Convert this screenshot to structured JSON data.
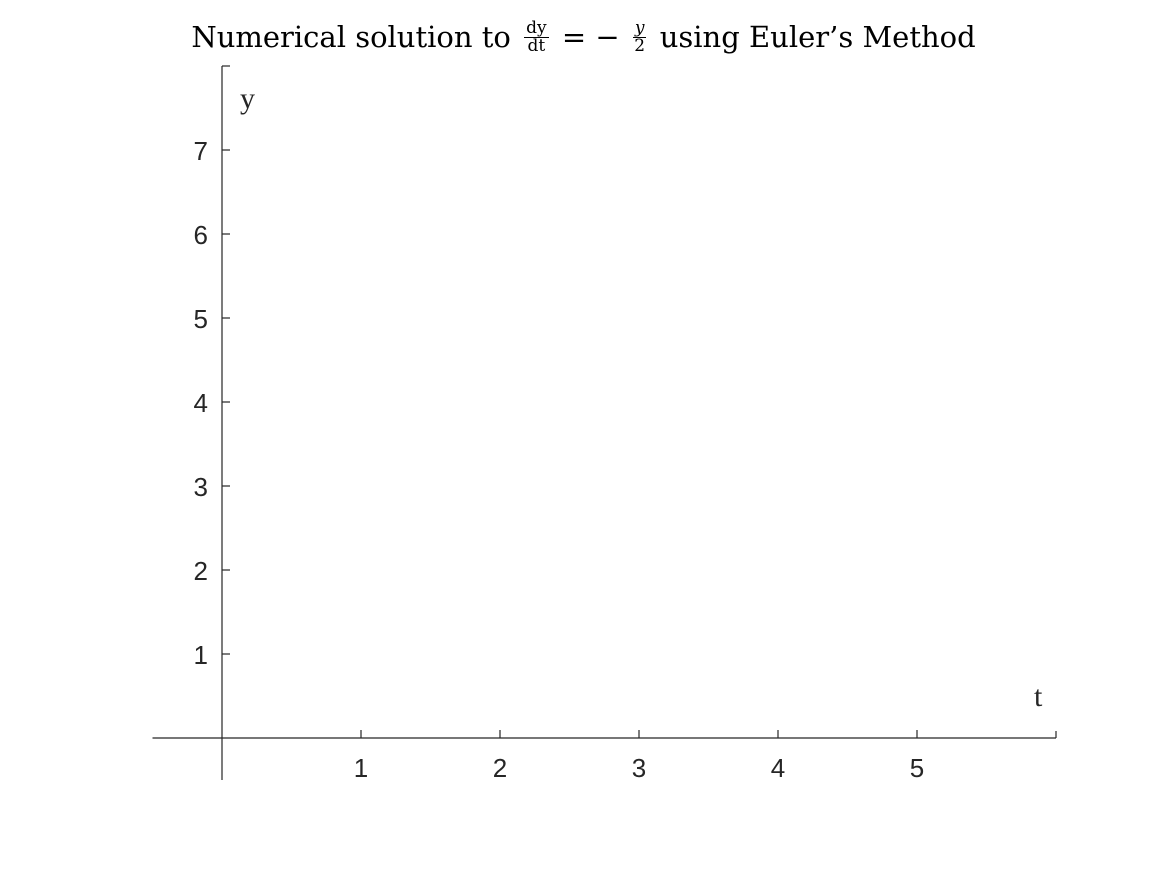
{
  "chart_data": {
    "type": "line",
    "title": {
      "prefix": "Numerical solution to",
      "frac1_num": "dy",
      "frac1_den": "dt",
      "middle": "= −",
      "frac2_num": "y",
      "frac2_den": "2",
      "suffix": "using Euler’s Method"
    },
    "xlabel": "t",
    "ylabel": "y",
    "xlim": [
      -0.5,
      6
    ],
    "ylim": [
      -0.5,
      8
    ],
    "xticks": [
      "1",
      "2",
      "3",
      "4",
      "5"
    ],
    "yticks": [
      "1",
      "2",
      "3",
      "4",
      "5",
      "6",
      "7"
    ],
    "grid": false,
    "series": [],
    "axis_color": "#262626"
  }
}
